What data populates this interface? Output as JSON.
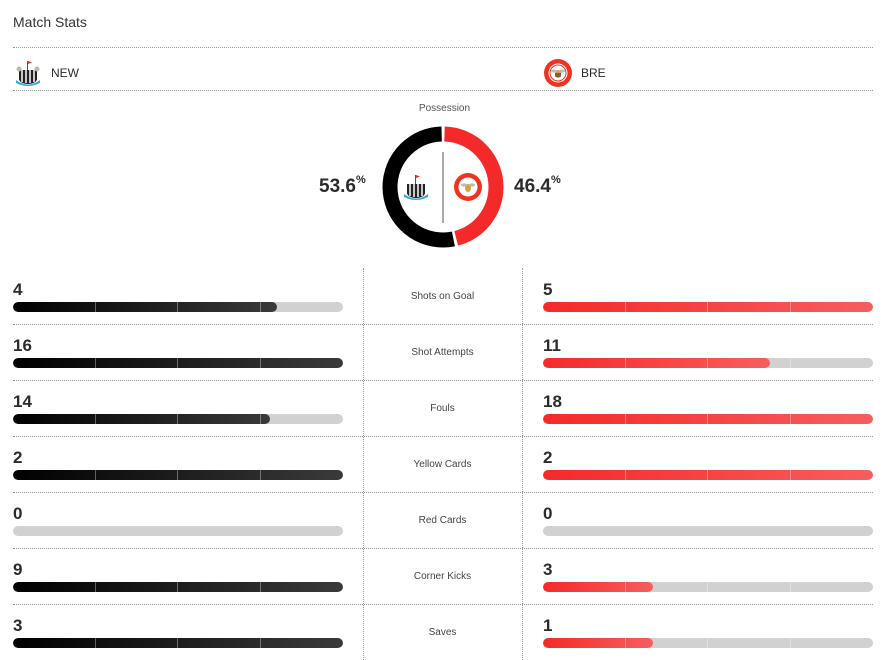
{
  "title": "Match Stats",
  "home": {
    "abbr": "NEW",
    "color": "#000000",
    "possession": "53.6",
    "possession_value": 53.6
  },
  "away": {
    "abbr": "BRE",
    "color": "#f42a2a",
    "possession": "46.4",
    "possession_value": 46.4
  },
  "possession_label": "Possession",
  "percent_sign": "%",
  "stats": [
    {
      "label": "Shots on Goal",
      "home": "4",
      "away": "5"
    },
    {
      "label": "Shot Attempts",
      "home": "16",
      "away": "11"
    },
    {
      "label": "Fouls",
      "home": "14",
      "away": "18"
    },
    {
      "label": "Yellow Cards",
      "home": "2",
      "away": "2"
    },
    {
      "label": "Red Cards",
      "home": "0",
      "away": "0"
    },
    {
      "label": "Corner Kicks",
      "home": "9",
      "away": "3"
    },
    {
      "label": "Saves",
      "home": "3",
      "away": "1"
    }
  ]
}
